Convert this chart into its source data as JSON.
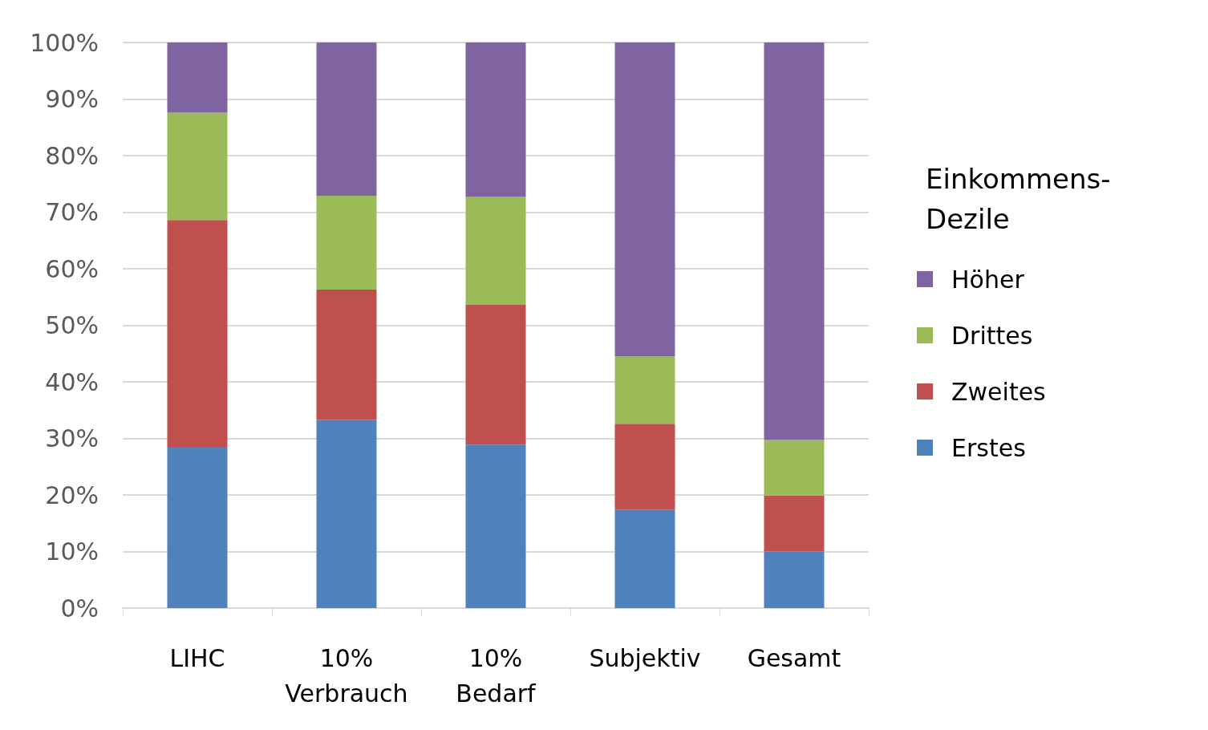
{
  "chart_data": {
    "type": "bar",
    "stacked": true,
    "legend_title": "Einkommens-\nDezile",
    "categories": [
      "LIHC",
      "10%\nVerbrauch",
      "10%\nBedarf",
      "Subjektiv",
      "Gesamt"
    ],
    "series": [
      {
        "name": "Erstes",
        "color": "#4f81bd",
        "values": [
          28.5,
          33.3,
          28.9,
          17.4,
          10.0
        ]
      },
      {
        "name": "Zweites",
        "color": "#c0504d",
        "values": [
          40.1,
          23.0,
          24.7,
          15.2,
          9.9
        ]
      },
      {
        "name": "Drittes",
        "color": "#9bbb59",
        "values": [
          19.0,
          16.6,
          19.1,
          11.9,
          9.8
        ]
      },
      {
        "name": "Höher",
        "color": "#8064a2",
        "values": [
          12.4,
          27.1,
          27.3,
          55.5,
          70.3
        ]
      }
    ],
    "ylim": [
      0,
      100
    ],
    "yticks": [
      {
        "value": 0,
        "label": "0%"
      },
      {
        "value": 10,
        "label": "10%"
      },
      {
        "value": 20,
        "label": "20%"
      },
      {
        "value": 30,
        "label": "30%"
      },
      {
        "value": 40,
        "label": "40%"
      },
      {
        "value": 50,
        "label": "50%"
      },
      {
        "value": 60,
        "label": "60%"
      },
      {
        "value": 70,
        "label": "70%"
      },
      {
        "value": 80,
        "label": "80%"
      },
      {
        "value": 90,
        "label": "90%"
      },
      {
        "value": 100,
        "label": "100%"
      }
    ],
    "grid": "y",
    "legend": "right"
  }
}
